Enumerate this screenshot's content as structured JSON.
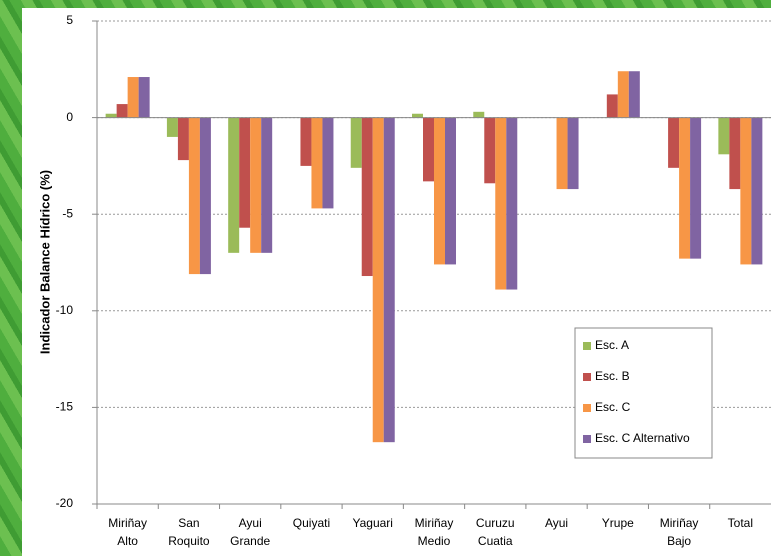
{
  "chart_data": {
    "type": "bar",
    "y_label": "Indicador Balance Hídrico (%)",
    "categories": [
      "Miriñay Alto",
      "San Roquito",
      "Ayui Grande",
      "Quiyati",
      "Yaguari",
      "Miriñay Medio",
      "Curuzu Cuatia",
      "Ayui",
      "Yrupe",
      "Miriñay Bajo",
      "Total"
    ],
    "series": [
      {
        "name": "Esc. A",
        "color": "#9bbb59",
        "values": [
          0.2,
          -1.0,
          -7.0,
          0,
          -2.6,
          0.2,
          0.3,
          0,
          0,
          0,
          -1.9
        ]
      },
      {
        "name": "Esc. B",
        "color": "#c0504d",
        "values": [
          0.7,
          -2.2,
          -5.7,
          -2.5,
          -8.2,
          -3.3,
          -3.4,
          0,
          1.2,
          -2.6,
          -3.7
        ]
      },
      {
        "name": "Esc. C",
        "color": "#f79646",
        "values": [
          2.1,
          -8.1,
          -7.0,
          -4.7,
          -16.8,
          -7.6,
          -8.9,
          -3.7,
          2.4,
          -7.3,
          -7.6
        ]
      },
      {
        "name": "Esc. C Alternativo",
        "color": "#8064a2",
        "values": [
          2.1,
          -8.1,
          -7.0,
          -4.7,
          -16.8,
          -7.6,
          -8.9,
          -3.7,
          2.4,
          -7.3,
          -7.6
        ]
      }
    ],
    "ylim": [
      -20,
      5
    ],
    "yticks": [
      5,
      0,
      -5,
      -10,
      -15,
      -20
    ],
    "grid": true,
    "legend": "lower right"
  }
}
